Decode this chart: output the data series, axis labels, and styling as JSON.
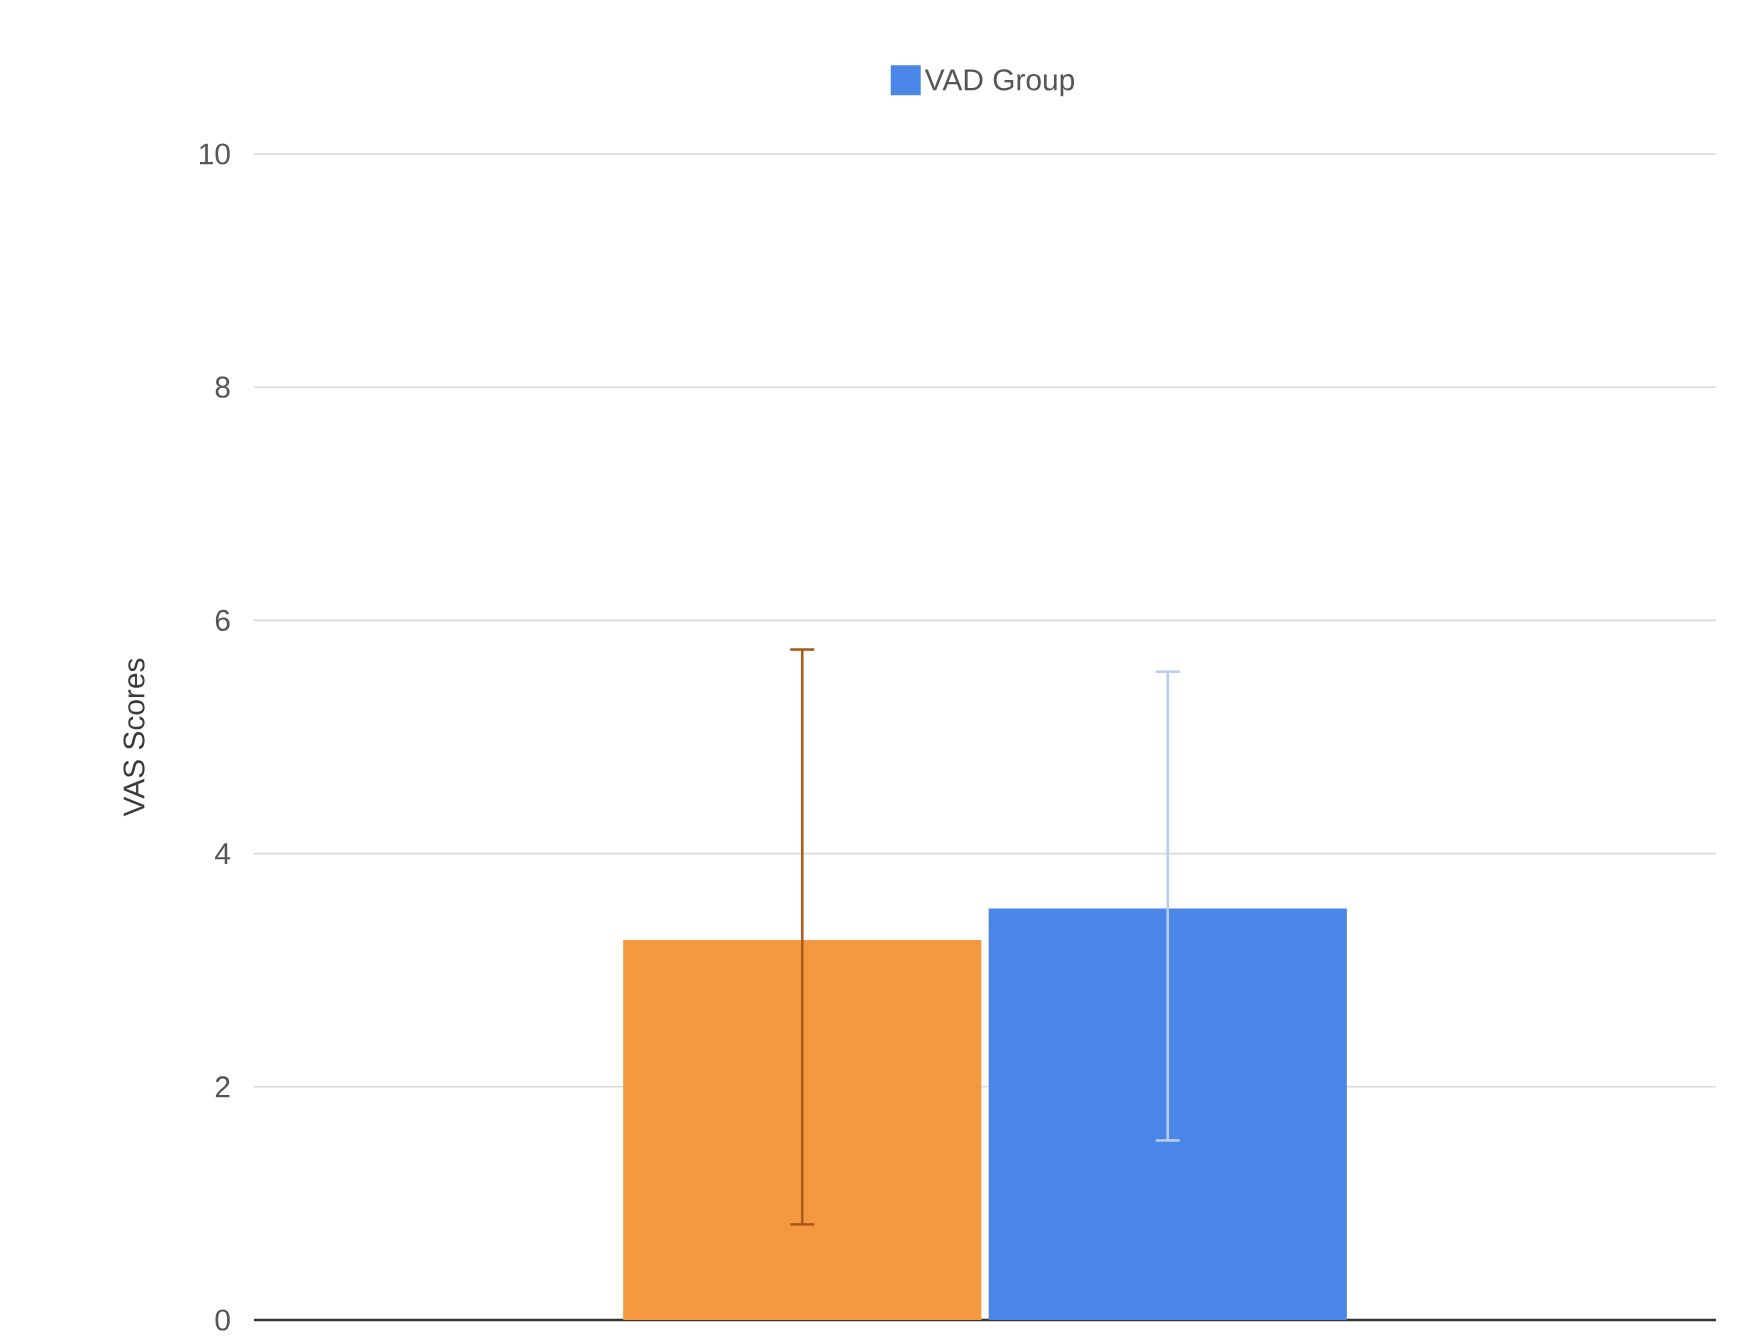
{
  "chart_data": {
    "type": "bar",
    "ylabel": "VAS Scores",
    "categories": [
      null
    ],
    "series": [
      {
        "color": "#f4993f",
        "values": [
          3.26
        ],
        "errors": [
          [
            0.82,
            5.75
          ]
        ]
      },
      {
        "name": "VAD Group",
        "color": "#4a86e8",
        "values": [
          3.53
        ],
        "errors": [
          [
            1.54,
            5.56
          ]
        ]
      }
    ],
    "ylim": [
      0,
      10
    ],
    "yticks": [
      0,
      2,
      4,
      6,
      8,
      10
    ],
    "grid": "y",
    "legend": "top"
  }
}
